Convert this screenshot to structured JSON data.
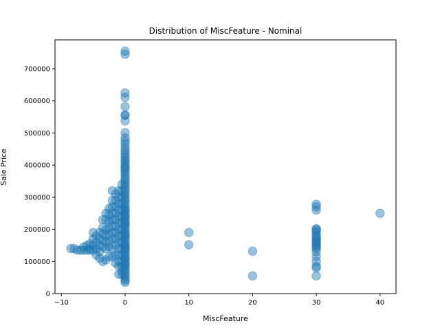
{
  "chart_data": {
    "type": "scatter",
    "title": "Distribution of MiscFeature - Nominal",
    "xlabel": "MiscFeature",
    "ylabel": "Sale Price",
    "xlim": [
      -11,
      42.5
    ],
    "ylim": [
      0,
      790000
    ],
    "xticks": [
      -10,
      0,
      10,
      20,
      30,
      40
    ],
    "xtick_labels": [
      "−10",
      "0",
      "10",
      "20",
      "30",
      "40"
    ],
    "yticks": [
      0,
      100000,
      200000,
      300000,
      400000,
      500000,
      600000,
      700000
    ],
    "ytick_labels": [
      "0",
      "100000",
      "200000",
      "300000",
      "400000",
      "500000",
      "600000",
      "700000"
    ],
    "grid": false,
    "legend": "none",
    "marker_color": "#1f77b4",
    "marker_alpha": 0.45,
    "series": [
      {
        "x": [
          0,
          0,
          0,
          0,
          0,
          0,
          0,
          0,
          0,
          0,
          0,
          0,
          0,
          0,
          0,
          0,
          0,
          0,
          0,
          0,
          0,
          0,
          0,
          0,
          0,
          0,
          0,
          0,
          0,
          0,
          0,
          0,
          0,
          0,
          0,
          0,
          0,
          0,
          0,
          0,
          0,
          0,
          0,
          0,
          0,
          0,
          0,
          0,
          0,
          0,
          0,
          0,
          0,
          0,
          0,
          0,
          0,
          0,
          0,
          0,
          0,
          0,
          0,
          0,
          0,
          0,
          0,
          0,
          0,
          0,
          0,
          0,
          0,
          0,
          0,
          0,
          0,
          0,
          0,
          0,
          -0.5,
          -0.5,
          -0.5,
          -0.5,
          -0.5,
          -0.5,
          -0.5,
          -0.5,
          -0.5,
          -0.5,
          -0.5,
          -0.5,
          -0.5,
          -0.5,
          -0.5,
          -0.5,
          -1,
          -1,
          -1,
          -1,
          -1,
          -1,
          -1,
          -1,
          -1,
          -1,
          -1,
          -1,
          -1,
          -1,
          -1.5,
          -1.5,
          -1.5,
          -1.5,
          -1.5,
          -1.5,
          -1.5,
          -1.5,
          -1.5,
          -1.5,
          -1.5,
          -2,
          -2,
          -2,
          -2,
          -2,
          -2,
          -2,
          -2,
          -2,
          -2,
          -2.5,
          -2.5,
          -2.5,
          -2.5,
          -2.5,
          -2.5,
          -2.5,
          -2.5,
          -3,
          -3,
          -3,
          -3,
          -3,
          -3,
          -3,
          -3.5,
          -3.5,
          -3.5,
          -3.5,
          -3.5,
          -3.5,
          -4,
          -4,
          -4,
          -4,
          -4,
          -4.5,
          -4.5,
          -4.5,
          -4.5,
          -5,
          -5,
          -5,
          -5,
          -5.5,
          -5.5,
          -5.5,
          -6,
          -6,
          -6.5,
          -6.5,
          -7,
          -7.5,
          -8,
          -8.5,
          10,
          10,
          20,
          20,
          30,
          30,
          30,
          30,
          30,
          30,
          30,
          30,
          30,
          30,
          30,
          30,
          30,
          30,
          30,
          30,
          30,
          30,
          30,
          30,
          30,
          30,
          40
        ],
        "y": [
          755000,
          745000,
          625000,
          611000,
          582000,
          556000,
          555000,
          538000,
          501000,
          485000,
          475000,
          466000,
          455000,
          446000,
          438000,
          430000,
          423000,
          415000,
          410000,
          402000,
          395000,
          390000,
          385000,
          377000,
          370000,
          362000,
          355000,
          348000,
          340000,
          333000,
          325000,
          318000,
          310000,
          303000,
          295000,
          288000,
          280000,
          272000,
          265000,
          258000,
          250000,
          243000,
          236000,
          228000,
          221000,
          214000,
          207000,
          200000,
          193000,
          186000,
          179000,
          172000,
          165000,
          158000,
          151000,
          144000,
          137000,
          130000,
          123000,
          116000,
          109000,
          102000,
          95000,
          88000,
          81000,
          74000,
          67000,
          60000,
          53000,
          46000,
          40000,
          35000,
          240000,
          260000,
          220000,
          180000,
          140000,
          110000,
          90000,
          150000,
          340000,
          320000,
          300000,
          280000,
          260000,
          240000,
          220000,
          200000,
          180000,
          160000,
          140000,
          120000,
          100000,
          85000,
          70000,
          60000,
          320000,
          300000,
          280000,
          260000,
          240000,
          220000,
          200000,
          180000,
          160000,
          140000,
          120000,
          100000,
          85000,
          60000,
          310000,
          290000,
          270000,
          250000,
          230000,
          210000,
          190000,
          170000,
          150000,
          120000,
          95000,
          320000,
          290000,
          270000,
          250000,
          230000,
          210000,
          190000,
          170000,
          140000,
          115000,
          265000,
          245000,
          225000,
          205000,
          185000,
          165000,
          145000,
          115000,
          250000,
          230000,
          200000,
          180000,
          160000,
          140000,
          105000,
          230000,
          205000,
          185000,
          165000,
          145000,
          100000,
          190000,
          170000,
          150000,
          130000,
          110000,
          180000,
          160000,
          140000,
          120000,
          190000,
          170000,
          150000,
          135000,
          155000,
          140000,
          135000,
          150000,
          135000,
          145000,
          135000,
          135000,
          135000,
          140000,
          140000,
          190000,
          152000,
          132000,
          55000,
          278000,
          270000,
          260000,
          202000,
          200000,
          195000,
          190000,
          180000,
          175000,
          170000,
          165000,
          160000,
          155000,
          150000,
          145000,
          140000,
          130000,
          115000,
          100000,
          85000,
          80000,
          55000,
          250000
        ]
      }
    ]
  }
}
